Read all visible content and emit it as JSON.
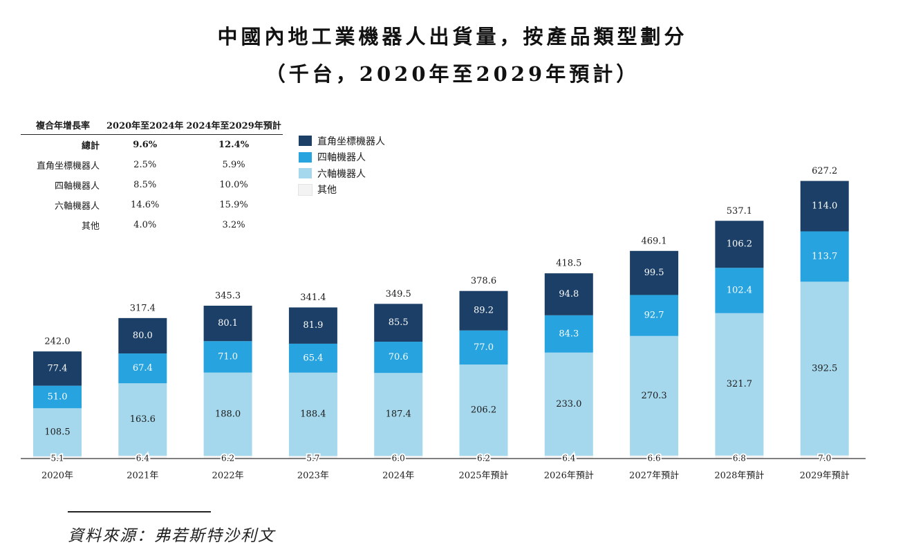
{
  "title_line1": "中國內地工業機器人出貨量，按產品類型劃分",
  "title_line2": "（千台，2020年至2029年預計）",
  "source": "資料來源：弗若斯特沙利文",
  "cagr_table": {
    "header": [
      "複合年增長率",
      "2020年至2024年",
      "2024年至2029年預計"
    ],
    "rows": [
      {
        "label": "總計",
        "v1": "9.6%",
        "v2": "12.4%"
      },
      {
        "label": "直角坐標機器人",
        "v1": "2.5%",
        "v2": "5.9%"
      },
      {
        "label": "四軸機器人",
        "v1": "8.5%",
        "v2": "10.0%"
      },
      {
        "label": "六軸機器人",
        "v1": "14.6%",
        "v2": "15.9%"
      },
      {
        "label": "其他",
        "v1": "4.0%",
        "v2": "3.2%"
      }
    ]
  },
  "colors": {
    "cartesian": "#1b3f66",
    "four_axis": "#27a4df",
    "six_axis": "#a5d8ec",
    "other": "#f3f3f3"
  },
  "chart_data": {
    "type": "bar",
    "stacked": true,
    "unit": "千台",
    "categories": [
      "2020年",
      "2021年",
      "2022年",
      "2023年",
      "2024年",
      "2025年預計",
      "2026年預計",
      "2027年預計",
      "2028年預計",
      "2029年預計"
    ],
    "series": [
      {
        "name": "其他",
        "key": "other",
        "values": [
          5.1,
          6.4,
          6.2,
          5.7,
          6.0,
          6.2,
          6.4,
          6.6,
          6.8,
          7.0
        ]
      },
      {
        "name": "六軸機器人",
        "key": "six_axis",
        "values": [
          108.5,
          163.6,
          188.0,
          188.4,
          187.4,
          206.2,
          233.0,
          270.3,
          321.7,
          392.5
        ]
      },
      {
        "name": "四軸機器人",
        "key": "four_axis",
        "values": [
          51.0,
          67.4,
          71.0,
          65.4,
          70.6,
          77.0,
          84.3,
          92.7,
          102.4,
          113.7
        ]
      },
      {
        "name": "直角坐標機器人",
        "key": "cartesian",
        "values": [
          77.4,
          80.0,
          80.1,
          81.9,
          85.5,
          89.2,
          94.8,
          99.5,
          106.2,
          114.0
        ]
      }
    ],
    "totals": [
      "242.0",
      "317.4",
      "345.3",
      "341.4",
      "349.5",
      "378.6",
      "418.5",
      "469.1",
      "537.1",
      "627.2"
    ],
    "legend": [
      "直角坐標機器人",
      "四軸機器人",
      "六軸機器人",
      "其他"
    ]
  }
}
